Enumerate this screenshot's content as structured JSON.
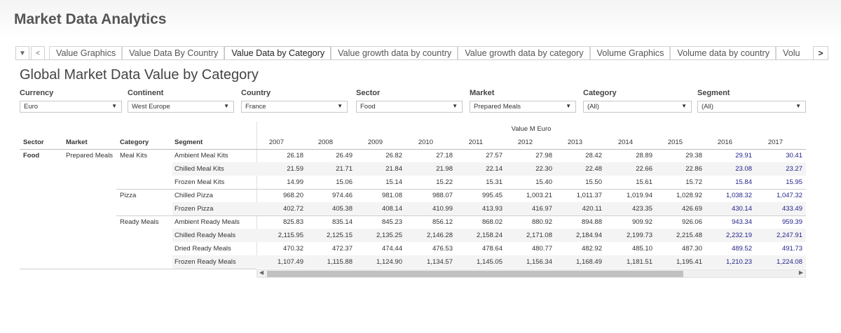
{
  "app": {
    "title": "Market Data Analytics"
  },
  "tabbar": {
    "tabs": [
      {
        "label": "Value Graphics"
      },
      {
        "label": "Value Data By Country"
      },
      {
        "label": "Value Data by Category",
        "active": true
      },
      {
        "label": "Value growth data by country"
      },
      {
        "label": "Value growth data by category"
      },
      {
        "label": "Volume Graphics"
      },
      {
        "label": "Volume data by country"
      },
      {
        "label": "Volu"
      }
    ],
    "nav_icons": [
      "caret-down-icon",
      "chevron-left-icon",
      "chevron-right-icon"
    ]
  },
  "page": {
    "title": "Global Market Data Value by Category"
  },
  "filters": [
    {
      "label": "Currency",
      "value": "Euro"
    },
    {
      "label": "Continent",
      "value": "West Europe"
    },
    {
      "label": "Country",
      "value": "France"
    },
    {
      "label": "Sector",
      "value": "Food"
    },
    {
      "label": "Market",
      "value": "Prepared Meals"
    },
    {
      "label": "Category",
      "value": "(All)"
    },
    {
      "label": "Segment",
      "value": "(All)"
    }
  ],
  "table": {
    "measure_title": "Value M Euro",
    "dim_headers": [
      "Sector",
      "Market",
      "Category",
      "Segment"
    ],
    "years": [
      "2007",
      "2008",
      "2009",
      "2010",
      "2011",
      "2012",
      "2013",
      "2014",
      "2015",
      "2016",
      "2017"
    ],
    "forecast_start_index": 9,
    "sector": "Food",
    "market": "Prepared Meals",
    "groups": [
      {
        "category": "Meal Kits",
        "rows": [
          {
            "segment": "Ambient Meal Kits",
            "values": [
              "26.18",
              "26.49",
              "26.82",
              "27.18",
              "27.57",
              "27.98",
              "28.42",
              "28.89",
              "29.38",
              "29.91",
              "30.41"
            ]
          },
          {
            "segment": "Chilled Meal Kits",
            "values": [
              "21.59",
              "21.71",
              "21.84",
              "21.98",
              "22.14",
              "22.30",
              "22.48",
              "22.66",
              "22.86",
              "23.08",
              "23.27"
            ]
          },
          {
            "segment": "Frozen Meal Kits",
            "values": [
              "14.99",
              "15.06",
              "15.14",
              "15.22",
              "15.31",
              "15.40",
              "15.50",
              "15.61",
              "15.72",
              "15.84",
              "15.95"
            ]
          }
        ]
      },
      {
        "category": "Pizza",
        "rows": [
          {
            "segment": "Chilled Pizza",
            "values": [
              "968.20",
              "974.46",
              "981.08",
              "988.07",
              "995.45",
              "1,003.21",
              "1,011.37",
              "1,019.94",
              "1,028.92",
              "1,038.32",
              "1,047.32"
            ]
          },
          {
            "segment": "Frozen Pizza",
            "values": [
              "402.72",
              "405.38",
              "408.14",
              "410.99",
              "413.93",
              "416.97",
              "420.11",
              "423.35",
              "426.69",
              "430.14",
              "433.49"
            ]
          }
        ]
      },
      {
        "category": "Ready Meals",
        "rows": [
          {
            "segment": "Ambient Ready Meals",
            "values": [
              "825.83",
              "835.14",
              "845.23",
              "856.12",
              "868.02",
              "880.92",
              "894.88",
              "909.92",
              "926.06",
              "943.34",
              "959.39"
            ]
          },
          {
            "segment": "Chilled Ready Meals",
            "values": [
              "2,115.95",
              "2,125.15",
              "2,135.25",
              "2,146.28",
              "2,158.24",
              "2,171.08",
              "2,184.94",
              "2,199.73",
              "2,215.48",
              "2,232.19",
              "2,247.91"
            ]
          },
          {
            "segment": "Dried Ready Meals",
            "values": [
              "470.32",
              "472.37",
              "474.44",
              "476.53",
              "478.64",
              "480.77",
              "482.92",
              "485.10",
              "487.30",
              "489.52",
              "491.73"
            ]
          },
          {
            "segment": "Frozen Ready Meals",
            "values": [
              "1,107.49",
              "1,115.88",
              "1,124.90",
              "1,134.57",
              "1,145.05",
              "1,156.34",
              "1,168.49",
              "1,181.51",
              "1,195.41",
              "1,210.23",
              "1,224.08"
            ]
          }
        ]
      }
    ]
  },
  "colors": {
    "forecast_text": "#1f1f8a",
    "row_shade": "#f4f4f4"
  }
}
